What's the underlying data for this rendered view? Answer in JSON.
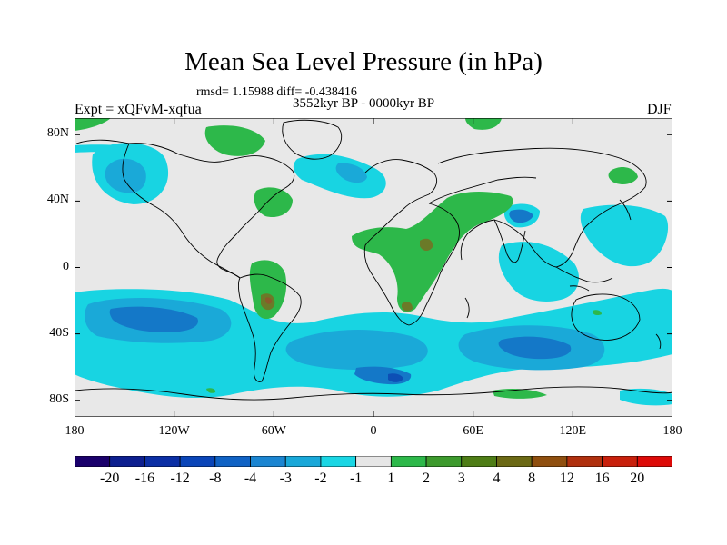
{
  "title": "Mean Sea Level Pressure (in hPa)",
  "stats": "rmsd= 1.15988 diff= -0.438416",
  "period": "3552kyr BP - 0000kyr BP",
  "expt": "Expt = xQFvM-xqfua",
  "season": "DJF",
  "x_axis": {
    "ticks": [
      {
        "label": "180",
        "lon": -180
      },
      {
        "label": "120W",
        "lon": -120
      },
      {
        "label": "60W",
        "lon": -60
      },
      {
        "label": "0",
        "lon": 0
      },
      {
        "label": "60E",
        "lon": 60
      },
      {
        "label": "120E",
        "lon": 120
      },
      {
        "label": "180",
        "lon": 180
      }
    ]
  },
  "y_axis": {
    "ticks": [
      {
        "label": "80N",
        "lat": 80
      },
      {
        "label": "40N",
        "lat": 40
      },
      {
        "label": "0",
        "lat": 0
      },
      {
        "label": "40S",
        "lat": -40
      },
      {
        "label": "80S",
        "lat": -80
      }
    ]
  },
  "colorbar": {
    "colors": [
      "#1a006b",
      "#0d1f8f",
      "#0b2fa5",
      "#0a45b8",
      "#1062c4",
      "#1b85d1",
      "#19a8d9",
      "#1ad6e4",
      "#e6e6e6",
      "#2db84a",
      "#3d9a2d",
      "#4e7d16",
      "#6b6914",
      "#8f4f0f",
      "#b0300e",
      "#c8200c",
      "#dd0a08"
    ],
    "labels": [
      "-20",
      "-16",
      "-12",
      "-8",
      "-4",
      "-3",
      "-2",
      "-1",
      "1",
      "2",
      "3",
      "4",
      "8",
      "12",
      "16",
      "20"
    ]
  },
  "map_colors": {
    "background": "#e8e8e8",
    "neg1": "#18d4e2",
    "neg2": "#1aa9d8",
    "neg3": "#1478c8",
    "neg4": "#0d4fb5",
    "pos1": "#2db84a",
    "pos2": "#6b7a28",
    "pos3": "#8a5a2a"
  }
}
